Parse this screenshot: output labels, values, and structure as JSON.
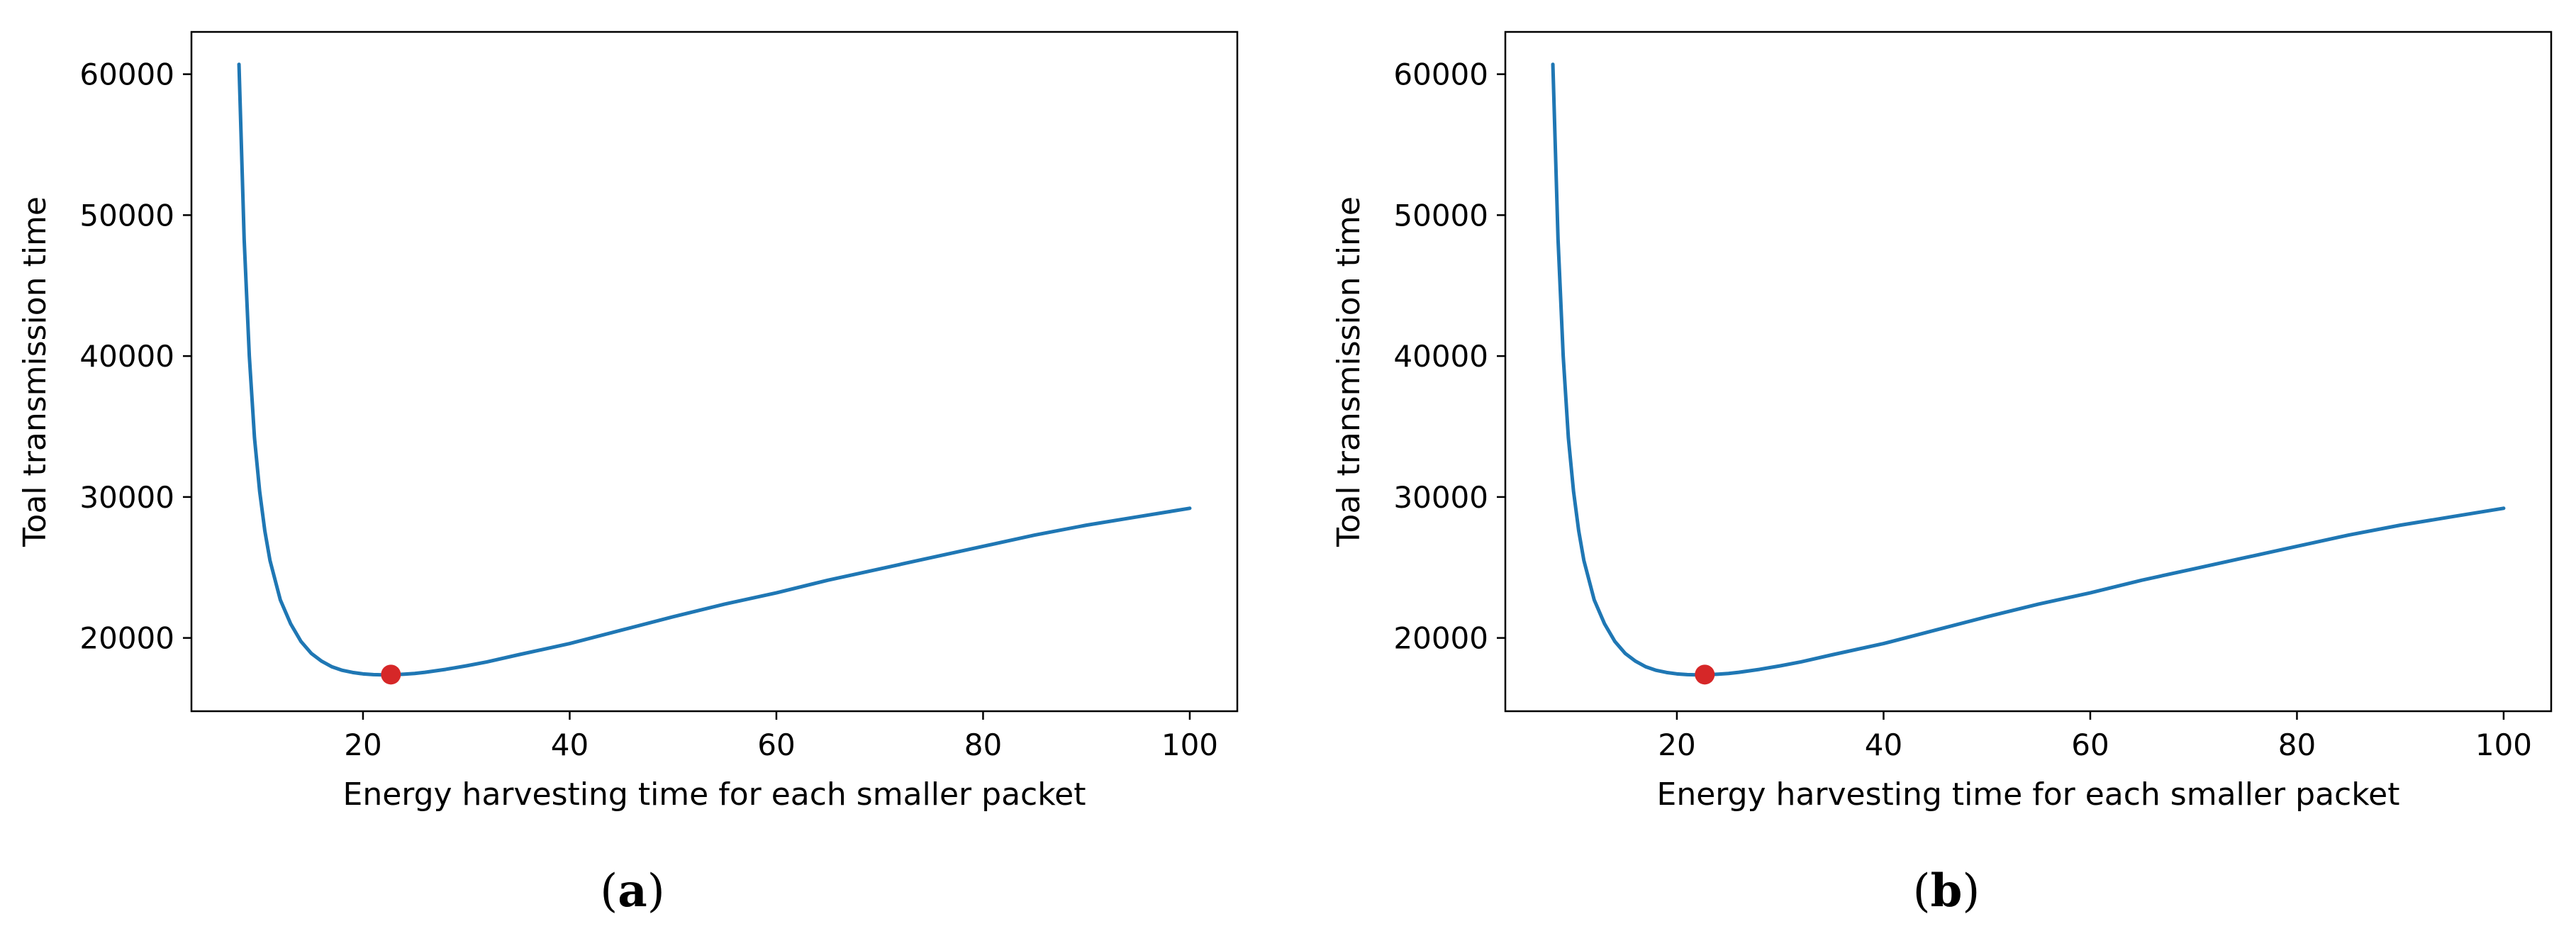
{
  "figure": {
    "panels": [
      {
        "caption_open": "(",
        "caption_letter": "a",
        "caption_close": ")"
      },
      {
        "caption_open": "(",
        "caption_letter": "b",
        "caption_close": ")"
      }
    ]
  },
  "colors": {
    "line": "#1f77b4",
    "marker": "#d62728",
    "axes": "#000000"
  },
  "chart_data": [
    {
      "type": "line",
      "title": "",
      "xlabel": "Energy harvesting time for each smaller packet",
      "ylabel": "Toal transmission time",
      "xlim": [
        3.4,
        104.6
      ],
      "ylim": [
        14800,
        63000
      ],
      "xticks": [
        20,
        40,
        60,
        80,
        100
      ],
      "yticks": [
        20000,
        30000,
        40000,
        50000,
        60000
      ],
      "grid": false,
      "legend": "none",
      "series": [
        {
          "x": [
            8.0,
            8.5,
            9.0,
            9.5,
            10.0,
            10.5,
            11.0,
            12.0,
            13.0,
            14.0,
            15.0,
            16.0,
            17.0,
            18.0,
            19.0,
            20.0,
            21.0,
            22.0,
            23.0,
            24.0,
            25.0,
            26.0,
            28.0,
            30.0,
            32.0,
            35.0,
            40.0,
            45.0,
            50.0,
            55.0,
            60.0,
            65.0,
            70.0,
            75.0,
            80.0,
            85.0,
            90.0,
            95.0,
            100.0
          ],
          "y": [
            60700,
            48300,
            40000,
            34200,
            30400,
            27600,
            25500,
            22700,
            21000,
            19750,
            18900,
            18350,
            17950,
            17700,
            17550,
            17450,
            17400,
            17380,
            17390,
            17430,
            17480,
            17560,
            17770,
            18020,
            18300,
            18800,
            19600,
            20550,
            21500,
            22400,
            23200,
            24100,
            24900,
            25700,
            26500,
            27300,
            28000,
            28600,
            29200
          ]
        }
      ],
      "highlight_point": {
        "x": 22.7,
        "y": 17400
      }
    },
    {
      "type": "line",
      "title": "",
      "xlabel": "Energy harvesting time for each smaller packet",
      "ylabel": "Toal transmission time",
      "xlim": [
        3.4,
        104.6
      ],
      "ylim": [
        14800,
        63000
      ],
      "xticks": [
        20,
        40,
        60,
        80,
        100
      ],
      "yticks": [
        20000,
        30000,
        40000,
        50000,
        60000
      ],
      "grid": false,
      "legend": "none",
      "series": [
        {
          "x": [
            8.0,
            8.5,
            9.0,
            9.5,
            10.0,
            10.5,
            11.0,
            12.0,
            13.0,
            14.0,
            15.0,
            16.0,
            17.0,
            18.0,
            19.0,
            20.0,
            21.0,
            22.0,
            23.0,
            24.0,
            25.0,
            26.0,
            28.0,
            30.0,
            32.0,
            35.0,
            40.0,
            45.0,
            50.0,
            55.0,
            60.0,
            65.0,
            70.0,
            75.0,
            80.0,
            85.0,
            90.0,
            95.0,
            100.0
          ],
          "y": [
            60700,
            48300,
            40000,
            34200,
            30400,
            27600,
            25500,
            22700,
            21000,
            19750,
            18900,
            18350,
            17950,
            17700,
            17550,
            17450,
            17400,
            17380,
            17390,
            17430,
            17480,
            17560,
            17770,
            18020,
            18300,
            18800,
            19600,
            20550,
            21500,
            22400,
            23200,
            24100,
            24900,
            25700,
            26500,
            27300,
            28000,
            28600,
            29200
          ]
        }
      ],
      "highlight_point": {
        "x": 22.7,
        "y": 17400
      }
    }
  ]
}
